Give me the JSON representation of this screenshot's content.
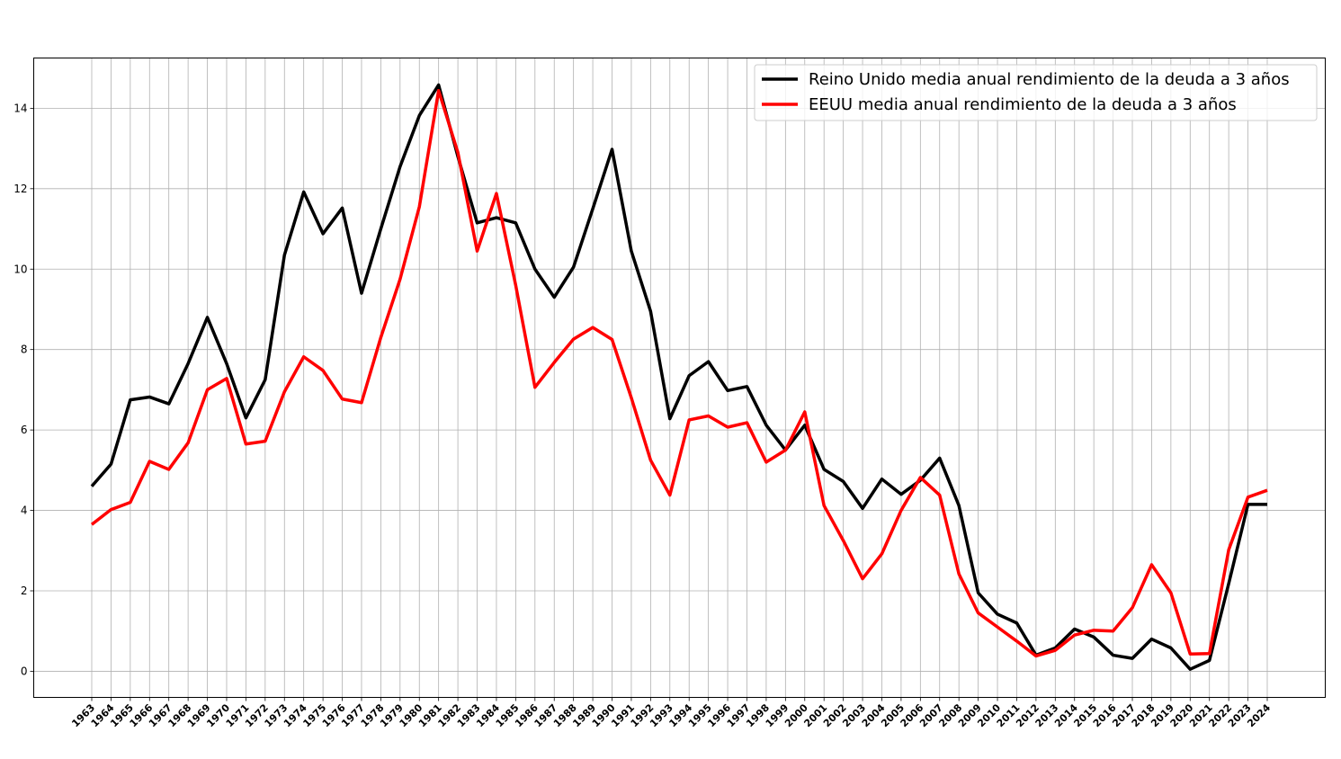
{
  "chart_data": {
    "type": "line",
    "title": "",
    "xlabel": "",
    "ylabel": "",
    "ylim": [
      -0.65,
      15.25
    ],
    "yticks": [
      0,
      2,
      4,
      6,
      8,
      10,
      12,
      14
    ],
    "grid": true,
    "legend_position": "top-right",
    "categories": [
      "1963",
      "1964",
      "1965",
      "1966",
      "1967",
      "1968",
      "1969",
      "1970",
      "1971",
      "1972",
      "1973",
      "1974",
      "1975",
      "1976",
      "1977",
      "1978",
      "1979",
      "1980",
      "1981",
      "1982",
      "1983",
      "1984",
      "1985",
      "1986",
      "1987",
      "1988",
      "1989",
      "1990",
      "1991",
      "1992",
      "1993",
      "1994",
      "1995",
      "1996",
      "1997",
      "1998",
      "1999",
      "2000",
      "2001",
      "2002",
      "2003",
      "2004",
      "2005",
      "2006",
      "2007",
      "2008",
      "2009",
      "2010",
      "2011",
      "2012",
      "2013",
      "2014",
      "2015",
      "2016",
      "2017",
      "2018",
      "2019",
      "2020",
      "2021",
      "2022",
      "2023",
      "2024"
    ],
    "series": [
      {
        "name": "Reino Unido media anual rendimiento de la deuda a 3 años",
        "color": "#000000",
        "values": [
          4.6,
          5.15,
          6.75,
          6.82,
          6.65,
          7.65,
          8.8,
          7.65,
          6.3,
          7.25,
          10.35,
          11.92,
          10.88,
          11.52,
          9.4,
          11.0,
          12.55,
          13.82,
          14.58,
          12.8,
          11.15,
          11.28,
          11.15,
          10.0,
          9.3,
          10.05,
          11.5,
          12.98,
          10.45,
          8.95,
          6.28,
          7.35,
          7.7,
          6.98,
          7.08,
          6.12,
          5.5,
          6.12,
          5.02,
          4.72,
          4.05,
          4.78,
          4.4,
          4.75,
          5.3,
          4.12,
          1.95,
          1.42,
          1.2,
          0.4,
          0.58,
          1.05,
          0.85,
          0.4,
          0.32,
          0.8,
          0.58,
          0.05,
          0.27,
          2.18,
          4.15,
          4.15
        ]
      },
      {
        "name": "EEUU media anual rendimiento de la deuda a 3 años",
        "color": "#ff0000",
        "values": [
          3.65,
          4.02,
          4.2,
          5.22,
          5.02,
          5.68,
          7.0,
          7.28,
          5.65,
          5.72,
          6.95,
          7.82,
          7.48,
          6.77,
          6.68,
          8.3,
          9.75,
          11.55,
          14.44,
          12.9,
          10.45,
          11.88,
          9.6,
          7.06,
          7.68,
          8.26,
          8.55,
          8.25,
          6.8,
          5.25,
          4.38,
          6.25,
          6.35,
          6.07,
          6.18,
          5.2,
          5.5,
          6.45,
          4.12,
          3.25,
          2.3,
          2.92,
          4.0,
          4.82,
          4.38,
          2.42,
          1.45,
          1.1,
          0.75,
          0.38,
          0.52,
          0.9,
          1.02,
          1.0,
          1.58,
          2.65,
          1.95,
          0.43,
          0.44,
          3.02,
          4.33,
          4.5
        ]
      }
    ]
  }
}
